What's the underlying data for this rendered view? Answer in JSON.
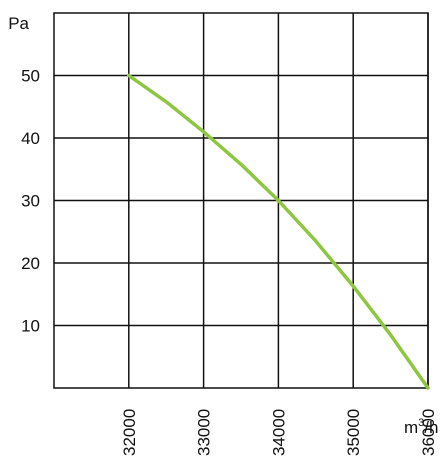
{
  "chart_data": {
    "type": "line",
    "ylabel": "Pa",
    "xlabel_base": "m",
    "xlabel_sup": "3",
    "xlabel_tail": "/h",
    "xlim": [
      31000,
      36000
    ],
    "ylim": [
      0,
      60
    ],
    "x_ticks": [
      32000,
      33000,
      34000,
      35000,
      36000
    ],
    "y_ticks": [
      10,
      20,
      30,
      40,
      50
    ],
    "x_tick_labels": [
      "32000",
      "33000",
      "34000",
      "35000",
      "36000"
    ],
    "y_tick_labels": [
      "10",
      "20",
      "30",
      "40",
      "50"
    ],
    "grid": true,
    "series": [
      {
        "color": "#8dc63f",
        "x": [
          32000,
          32500,
          33000,
          33500,
          34000,
          34500,
          35000,
          35500,
          36000
        ],
        "y": [
          50,
          45.8,
          41,
          35.8,
          30,
          23.5,
          16.3,
          8.5,
          0
        ]
      }
    ]
  }
}
